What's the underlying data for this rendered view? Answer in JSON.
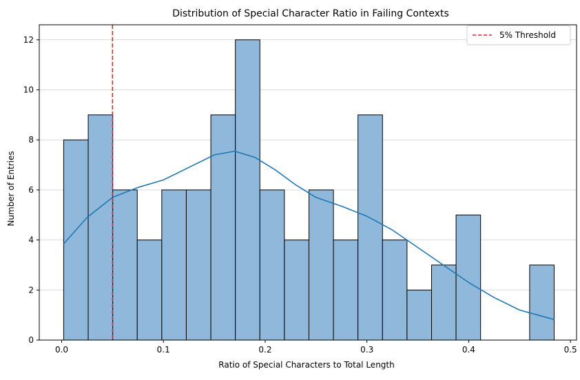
{
  "chart_data": {
    "type": "bar",
    "title": "Distribution of Special Character Ratio in Failing Contexts",
    "xlabel": "Ratio of Special Characters to Total Length",
    "ylabel": "Number of Entries",
    "xlim": [
      -0.022,
      0.506
    ],
    "ylim": [
      0,
      12.6
    ],
    "xticks": [
      0.0,
      0.1,
      0.2,
      0.3,
      0.4,
      0.5
    ],
    "xtick_labels": [
      "0.0",
      "0.1",
      "0.2",
      "0.3",
      "0.4",
      "0.5"
    ],
    "yticks": [
      0,
      2,
      4,
      6,
      8,
      10,
      12
    ],
    "ytick_labels": [
      "0",
      "2",
      "4",
      "6",
      "8",
      "10",
      "12"
    ],
    "grid": {
      "y": true,
      "x": false
    },
    "bins": {
      "start": 0.002,
      "end": 0.484,
      "counts": [
        8,
        9,
        6,
        4,
        6,
        6,
        9,
        12,
        6,
        4,
        6,
        4,
        9,
        4,
        2,
        3,
        5,
        0,
        0,
        3
      ]
    },
    "kde": {
      "x": [
        0.002,
        0.025,
        0.05,
        0.075,
        0.1,
        0.125,
        0.15,
        0.17,
        0.19,
        0.21,
        0.23,
        0.25,
        0.275,
        0.3,
        0.325,
        0.35,
        0.375,
        0.4,
        0.425,
        0.45,
        0.484
      ],
      "y": [
        3.85,
        4.9,
        5.7,
        6.1,
        6.4,
        6.9,
        7.4,
        7.55,
        7.3,
        6.8,
        6.2,
        5.7,
        5.35,
        4.95,
        4.4,
        3.7,
        3.0,
        2.3,
        1.7,
        1.2,
        0.82
      ],
      "color": "#1f77b4"
    },
    "bar_color": "#8fb8da",
    "bar_edge": "#000000",
    "threshold": {
      "x": 0.05,
      "label": "5% Threshold",
      "color": "#d62728"
    },
    "legend_position": "top-right"
  }
}
